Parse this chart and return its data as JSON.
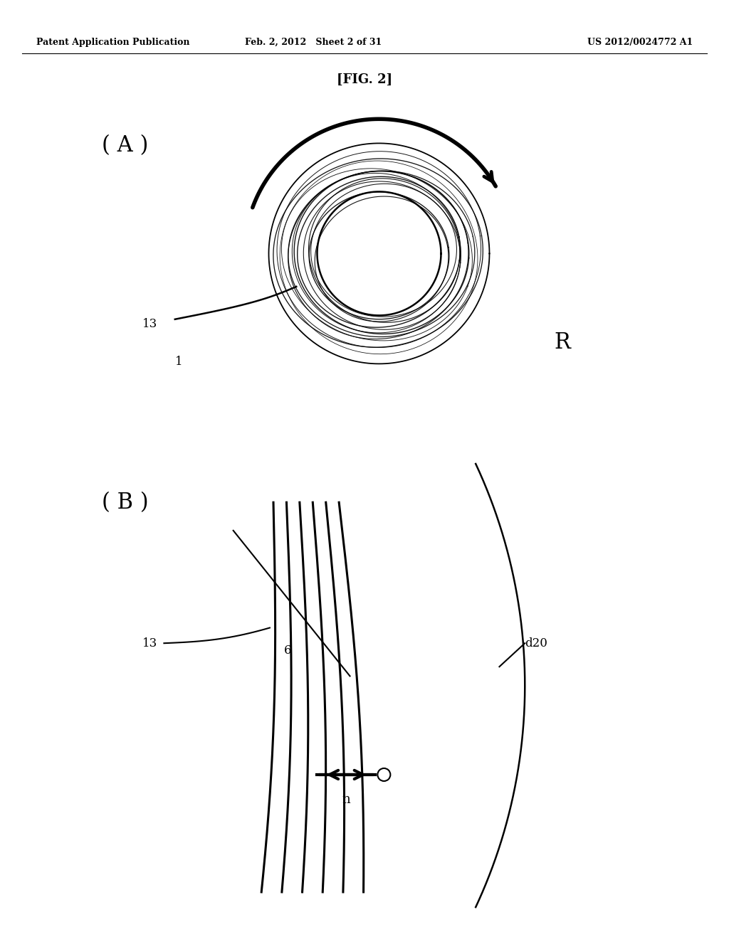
{
  "bg_color": "#ffffff",
  "header_left": "Patent Application Publication",
  "header_mid": "Feb. 2, 2012   Sheet 2 of 31",
  "header_right": "US 2012/0024772 A1",
  "fig_label": "[FIG. 2]",
  "label_A": "( A )",
  "label_B": "( B )",
  "label_13_A": "13",
  "label_1": "1",
  "label_R": "R",
  "label_13_B": "13",
  "label_6": "6",
  "label_d20": "d20",
  "label_n": "n"
}
